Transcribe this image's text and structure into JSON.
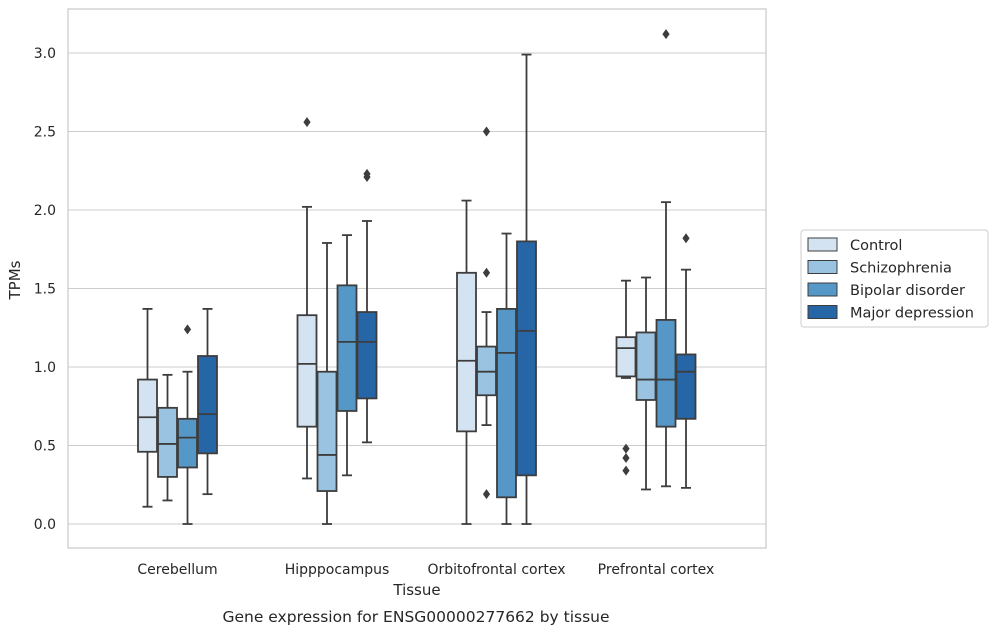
{
  "chart_data": {
    "type": "box",
    "xlabel": "Tissue",
    "ylabel": "TPMs",
    "caption": "Gene expression for ENSG00000277662 by tissue",
    "ylim": [
      -0.15,
      3.3
    ],
    "yticks": [
      "0.0",
      "0.5",
      "1.0",
      "1.5",
      "2.0",
      "2.5",
      "3.0"
    ],
    "categories": [
      "Cerebellum",
      "Hipppocampus",
      "Orbitofrontal cortex",
      "Prefrontal cortex"
    ],
    "grid": "horizontal",
    "legend_position": "right, outside plot",
    "series": [
      {
        "name": "Control",
        "color": "#d4e3f2",
        "boxes": [
          {
            "whisker_low": 0.11,
            "q1": 0.46,
            "median": 0.68,
            "q3": 0.92,
            "whisker_high": 1.37,
            "outliers": []
          },
          {
            "whisker_low": 0.29,
            "q1": 0.62,
            "median": 1.02,
            "q3": 1.33,
            "whisker_high": 2.02,
            "outliers": [
              2.56
            ]
          },
          {
            "whisker_low": 0.0,
            "q1": 0.59,
            "median": 1.04,
            "q3": 1.6,
            "whisker_high": 2.06,
            "outliers": []
          },
          {
            "whisker_low": 0.93,
            "q1": 0.94,
            "median": 1.12,
            "q3": 1.19,
            "whisker_high": 1.55,
            "outliers": [
              0.48,
              0.42,
              0.34
            ]
          }
        ]
      },
      {
        "name": "Schizophrenia",
        "color": "#99c3e0",
        "boxes": [
          {
            "whisker_low": 0.15,
            "q1": 0.3,
            "median": 0.51,
            "q3": 0.74,
            "whisker_high": 0.95,
            "outliers": []
          },
          {
            "whisker_low": 0.0,
            "q1": 0.21,
            "median": 0.44,
            "q3": 0.97,
            "whisker_high": 1.79,
            "outliers": []
          },
          {
            "whisker_low": 0.63,
            "q1": 0.82,
            "median": 0.97,
            "q3": 1.13,
            "whisker_high": 1.35,
            "outliers": [
              2.5,
              1.6,
              0.19
            ]
          },
          {
            "whisker_low": 0.22,
            "q1": 0.79,
            "median": 0.92,
            "q3": 1.22,
            "whisker_high": 1.57,
            "outliers": []
          }
        ]
      },
      {
        "name": "Bipolar disorder",
        "color": "#5598c8",
        "boxes": [
          {
            "whisker_low": 0.0,
            "q1": 0.36,
            "median": 0.55,
            "q3": 0.67,
            "whisker_high": 0.97,
            "outliers": [
              1.24
            ]
          },
          {
            "whisker_low": 0.31,
            "q1": 0.72,
            "median": 1.16,
            "q3": 1.52,
            "whisker_high": 1.84,
            "outliers": []
          },
          {
            "whisker_low": 0.0,
            "q1": 0.17,
            "median": 1.09,
            "q3": 1.37,
            "whisker_high": 1.85,
            "outliers": []
          },
          {
            "whisker_low": 0.24,
            "q1": 0.62,
            "median": 0.92,
            "q3": 1.3,
            "whisker_high": 2.05,
            "outliers": [
              3.12
            ]
          }
        ]
      },
      {
        "name": "Major depression",
        "color": "#2766a6",
        "boxes": [
          {
            "whisker_low": 0.19,
            "q1": 0.45,
            "median": 0.7,
            "q3": 1.07,
            "whisker_high": 1.37,
            "outliers": []
          },
          {
            "whisker_low": 0.52,
            "q1": 0.8,
            "median": 1.16,
            "q3": 1.35,
            "whisker_high": 1.93,
            "outliers": [
              2.23,
              2.21
            ]
          },
          {
            "whisker_low": 0.0,
            "q1": 0.31,
            "median": 1.23,
            "q3": 1.8,
            "whisker_high": 2.99,
            "outliers": []
          },
          {
            "whisker_low": 0.23,
            "q1": 0.67,
            "median": 0.97,
            "q3": 1.08,
            "whisker_high": 1.62,
            "outliers": [
              1.82
            ]
          }
        ]
      }
    ]
  }
}
